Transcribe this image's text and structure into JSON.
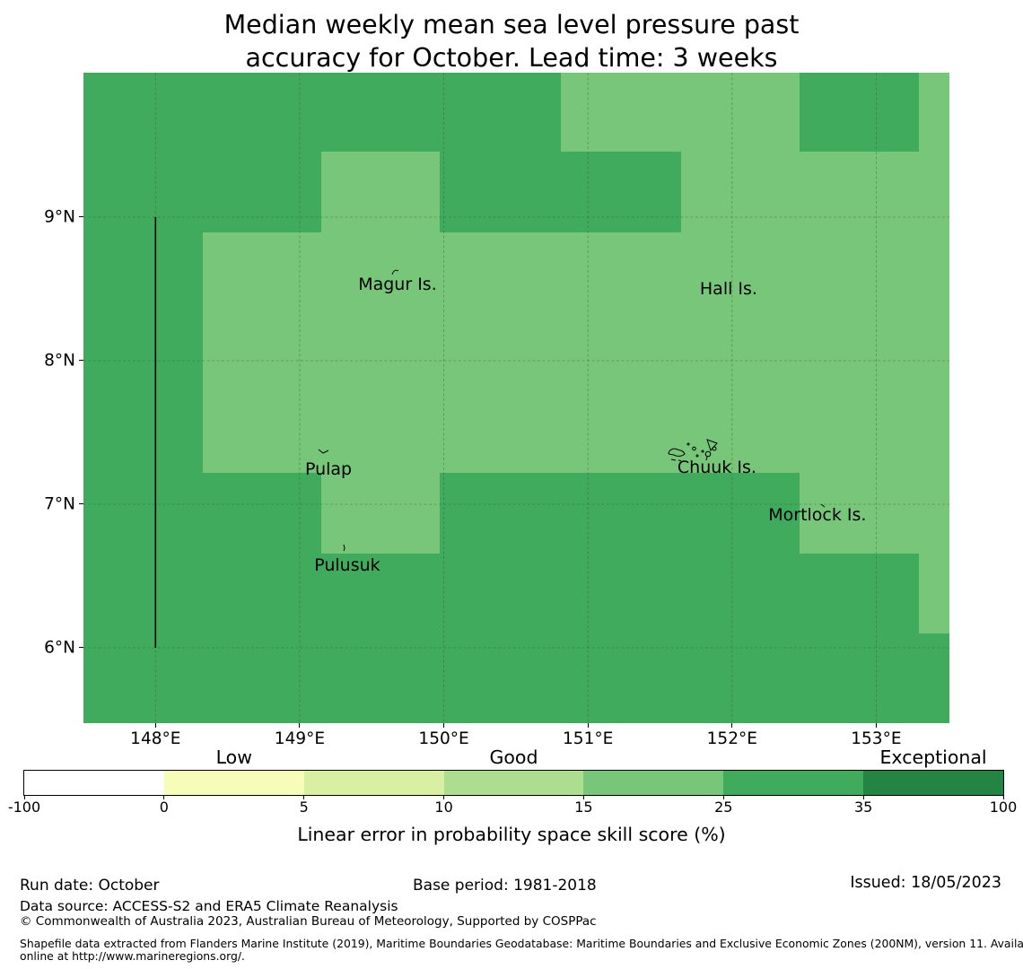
{
  "title": {
    "lines": [
      "Median weekly mean sea level pressure past",
      "accuracy for October. Lead time: 3 weeks"
    ]
  },
  "chart_data": {
    "type": "heatmap",
    "subtype": "geographic-choropleth-forecast-skill-map",
    "variable": "Median weekly mean sea level pressure past accuracy",
    "month": "October",
    "lead_time": "3 weeks",
    "extent": {
      "lon_min": 147.5,
      "lon_max": 153.508,
      "lat_min": 5.475,
      "lat_max": 10.006
    },
    "x_ticks": {
      "values": [
        148,
        149,
        150,
        151,
        152,
        153
      ],
      "labels": [
        "148°E",
        "149°E",
        "150°E",
        "151°E",
        "152°E",
        "153°E"
      ]
    },
    "y_ticks": {
      "values": [
        9,
        8,
        7,
        6
      ],
      "labels": [
        "9°N",
        "8°N",
        "7°N",
        "6°N"
      ]
    },
    "grid": "dashed graticule at 1 degree spacing",
    "boundary_line": {
      "lon": 148,
      "lat_from": 6,
      "lat_to": 9
    },
    "cell_lon_edges": [
      147.5,
      148.328,
      149.15,
      149.971,
      150.812,
      151.646,
      152.468,
      153.296,
      153.508
    ],
    "cell_lat_edges": [
      10.006,
      9.456,
      8.894,
      8.337,
      7.775,
      7.219,
      6.656,
      6.1,
      5.475
    ],
    "cell_skill_bins": [
      [
        "25-35",
        "25-35",
        "25-35",
        "25-35",
        "15-25",
        "15-25",
        "25-35",
        "15-25"
      ],
      [
        "25-35",
        "25-35",
        "15-25",
        "25-35",
        "25-35",
        "15-25",
        "15-25",
        "15-25"
      ],
      [
        "25-35",
        "15-25",
        "15-25",
        "15-25",
        "15-25",
        "15-25",
        "15-25",
        "15-25"
      ],
      [
        "25-35",
        "15-25",
        "15-25",
        "15-25",
        "15-25",
        "15-25",
        "15-25",
        "15-25"
      ],
      [
        "25-35",
        "15-25",
        "15-25",
        "15-25",
        "15-25",
        "15-25",
        "15-25",
        "15-25"
      ],
      [
        "25-35",
        "25-35",
        "15-25",
        "25-35",
        "25-35",
        "25-35",
        "15-25",
        "15-25"
      ],
      [
        "25-35",
        "25-35",
        "25-35",
        "25-35",
        "25-35",
        "25-35",
        "25-35",
        "15-25"
      ],
      [
        "25-35",
        "25-35",
        "25-35",
        "25-35",
        "25-35",
        "25-35",
        "25-35",
        "25-35"
      ]
    ],
    "bin_color_map": {
      "15-25": "#78c679",
      "25-35": "#41ab5d"
    },
    "islands": [
      {
        "name": "Magur Is.",
        "lon": 149.679,
        "lat": 8.531
      },
      {
        "name": "Hall Is.",
        "lon": 151.976,
        "lat": 8.5
      },
      {
        "name": "Pulap",
        "lon": 149.2,
        "lat": 7.244
      },
      {
        "name": "Chuuk Is.",
        "lon": 151.895,
        "lat": 7.256
      },
      {
        "name": "Pulusuk",
        "lon": 149.33,
        "lat": 6.575
      },
      {
        "name": "Mortlock Is.",
        "lon": 152.592,
        "lat": 6.925
      }
    ],
    "colorbar": {
      "bin_edges": [
        "-100",
        "0",
        "5",
        "10",
        "15",
        "25",
        "35",
        "100"
      ],
      "colors": [
        "#ffffff",
        "#f7fcb9",
        "#d9f0a3",
        "#addd8e",
        "#78c679",
        "#41ab5d",
        "#238443"
      ],
      "categories": [
        {
          "label": "Low",
          "segment_index": 1
        },
        {
          "label": "Good",
          "segment_index": 3
        },
        {
          "label": "Exceptional",
          "segment_index": 6
        }
      ],
      "axis_label": "Linear error in probability space skill score (%)"
    }
  },
  "footer": {
    "run_date": "Run date: October",
    "base_period": "Base period: 1981-2018",
    "issued": "Issued: 18/05/2023",
    "data_source": "Data source: ACCESS-S2 and ERA5 Climate Reanalysis",
    "copyright": "© Commonwealth of Australia 2023, Australian Bureau of Meteorology, Supported by COSPPac",
    "shapefile_note_lines": [
      "Shapefile data extracted from Flanders Marine Institute (2019), Maritime Boundaries Geodatabase: Maritime Boundaries and Exclusive Economic Zones (200NM), version 11. Available",
      "online at http://www.marineregions.org/."
    ]
  }
}
